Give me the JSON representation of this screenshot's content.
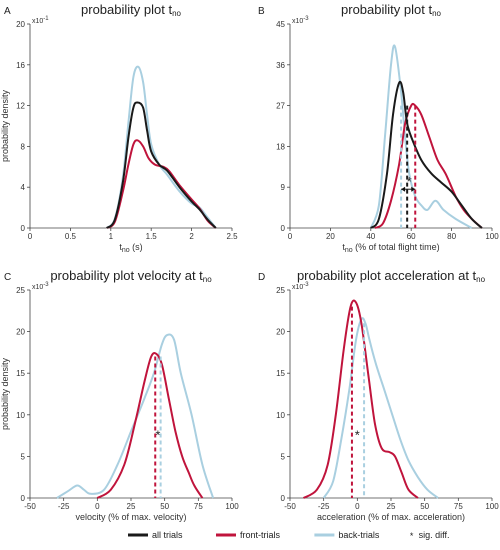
{
  "colors": {
    "all": "#1a1a1a",
    "front": "#c0143c",
    "back": "#a9cfe0"
  },
  "legend": [
    {
      "key": "all",
      "label": "all trials"
    },
    {
      "key": "front",
      "label": "front-trials"
    },
    {
      "key": "back",
      "label": "back-trials"
    },
    {
      "key": "sig",
      "label": "sig. diff.",
      "symbol": "*"
    }
  ],
  "chart_data": [
    {
      "panel": "A",
      "type": "line",
      "title": "probability plot t",
      "title_sub": "no",
      "xlabel": "t",
      "xlabel_sub": "no",
      "xlabel_suffix": " (s)",
      "ylabel": "probability density",
      "y_exponent": "x10",
      "y_exponent_power": "-1",
      "xlim": [
        0,
        2.5
      ],
      "ylim": [
        0,
        20
      ],
      "xticks": [
        0,
        0.5,
        1,
        1.5,
        2,
        2.5
      ],
      "yticks": [
        0,
        4,
        8,
        12,
        16,
        20
      ],
      "series": [
        {
          "key": "all",
          "x": [
            0.95,
            1.05,
            1.15,
            1.22,
            1.28,
            1.33,
            1.4,
            1.45,
            1.5,
            1.6,
            1.7,
            1.85,
            2.0,
            2.1,
            2.2,
            2.3
          ],
          "y": [
            0,
            0.8,
            4.5,
            9.0,
            11.8,
            12.3,
            11.8,
            9.5,
            7.5,
            6.2,
            5.6,
            4.0,
            2.6,
            1.8,
            0.8,
            0
          ]
        },
        {
          "key": "front",
          "x": [
            0.95,
            1.05,
            1.15,
            1.22,
            1.28,
            1.33,
            1.4,
            1.47,
            1.55,
            1.65,
            1.72,
            1.85,
            2.0,
            2.1,
            2.2,
            2.3
          ],
          "y": [
            0,
            0.6,
            3.6,
            6.3,
            8.2,
            8.6,
            8.0,
            6.8,
            6.2,
            6.0,
            5.6,
            4.2,
            2.8,
            1.9,
            0.7,
            0
          ]
        },
        {
          "key": "back",
          "x": [
            0.95,
            1.05,
            1.15,
            1.22,
            1.28,
            1.34,
            1.4,
            1.45,
            1.5,
            1.6,
            1.7,
            1.85,
            2.0,
            2.1,
            2.2,
            2.3
          ],
          "y": [
            0,
            0.9,
            5.0,
            10.5,
            14.8,
            15.8,
            14.3,
            11.0,
            8.2,
            6.2,
            5.2,
            3.6,
            2.4,
            2.0,
            1.0,
            0
          ]
        }
      ],
      "dashed": [],
      "sig": []
    },
    {
      "panel": "B",
      "type": "line",
      "title": "probability plot t",
      "title_sub": "no",
      "xlabel": "t",
      "xlabel_sub": "no",
      "xlabel_suffix": " (% of total flight time)",
      "ylabel": "",
      "y_exponent": "x10",
      "y_exponent_power": "-3",
      "xlim": [
        0,
        100
      ],
      "ylim": [
        0,
        45
      ],
      "xticks": [
        0,
        20,
        40,
        60,
        80,
        100
      ],
      "yticks": [
        0,
        9,
        18,
        27,
        36,
        45
      ],
      "series": [
        {
          "key": "all",
          "x": [
            40,
            44,
            48,
            51,
            54,
            56,
            58,
            61,
            65,
            70,
            75,
            80,
            85,
            90,
            95
          ],
          "y": [
            0,
            2,
            12,
            25,
            32,
            30,
            23,
            19,
            15,
            12,
            10,
            8,
            5,
            2,
            0
          ]
        },
        {
          "key": "front",
          "x": [
            42,
            46,
            50,
            54,
            57,
            60,
            62,
            65,
            69,
            73,
            77,
            82,
            86,
            90,
            95
          ],
          "y": [
            0,
            1,
            6,
            14,
            23,
            27,
            27,
            25,
            20,
            15,
            12,
            7,
            4,
            2,
            0
          ]
        },
        {
          "key": "back",
          "x": [
            40,
            44,
            47,
            50,
            52,
            55,
            57,
            59,
            62,
            65,
            68,
            72,
            76,
            82,
            90
          ],
          "y": [
            0,
            5,
            20,
            36,
            40,
            30,
            20,
            12,
            7,
            5,
            4,
            6,
            4,
            2,
            0
          ]
        }
      ],
      "dashed": [
        {
          "key": "back",
          "x": 55,
          "y": 27
        },
        {
          "key": "all",
          "x": 58,
          "y": 27
        },
        {
          "key": "front",
          "x": 62,
          "y": 27
        }
      ],
      "sig": [
        {
          "x": 59,
          "y": 9,
          "arrow_from": 55,
          "arrow_to": 62
        }
      ]
    },
    {
      "panel": "C",
      "type": "line",
      "title": "probability plot velocity at t",
      "title_sub": "no",
      "xlabel": "velocity (% of max. velocity)",
      "xlabel_sub": "",
      "xlabel_suffix": "",
      "ylabel": "probability density",
      "y_exponent": "x10",
      "y_exponent_power": "-3",
      "xlim": [
        -50,
        100
      ],
      "ylim": [
        0,
        25
      ],
      "xticks": [
        -50,
        -25,
        0,
        25,
        50,
        75,
        100
      ],
      "yticks": [
        0,
        5,
        10,
        15,
        20,
        25
      ],
      "series": [
        {
          "key": "front",
          "x": [
            0,
            10,
            20,
            28,
            35,
            40,
            44,
            48,
            53,
            58,
            63,
            68,
            72,
            78
          ],
          "y": [
            0,
            1,
            4,
            9,
            14,
            17,
            17.3,
            16,
            12,
            8,
            5,
            3,
            1.5,
            0
          ]
        },
        {
          "key": "back",
          "x": [
            -30,
            -22,
            -15,
            -10,
            -5,
            5,
            15,
            25,
            35,
            42,
            48,
            52,
            57,
            62,
            70,
            78,
            86
          ],
          "y": [
            0,
            0.8,
            1.5,
            1,
            0.5,
            1,
            4,
            8,
            12,
            15,
            18.5,
            19.6,
            19,
            15,
            10,
            4,
            0
          ]
        }
      ],
      "dashed": [
        {
          "key": "front",
          "x": 43,
          "y": 17
        },
        {
          "key": "back",
          "x": 47,
          "y": 17
        }
      ],
      "sig": [
        {
          "x": 45,
          "y": 7.5
        }
      ]
    },
    {
      "panel": "D",
      "type": "line",
      "title": "probability plot acceleration at t",
      "title_sub": "no",
      "xlabel": "acceleration (% of max. acceleration)",
      "xlabel_sub": "",
      "xlabel_suffix": "",
      "ylabel": "",
      "y_exponent": "x10",
      "y_exponent_power": "-3",
      "xlim": [
        -50,
        100
      ],
      "ylim": [
        0,
        25
      ],
      "xticks": [
        -50,
        -25,
        0,
        25,
        50,
        75,
        100
      ],
      "yticks": [
        0,
        5,
        10,
        15,
        20,
        25
      ],
      "series": [
        {
          "key": "front",
          "x": [
            -40,
            -30,
            -22,
            -16,
            -10,
            -5,
            -1,
            3,
            8,
            13,
            18,
            24,
            28,
            33,
            38,
            45
          ],
          "y": [
            0,
            1,
            4,
            10,
            18,
            23,
            23.5,
            21,
            15,
            9,
            6,
            5.5,
            5,
            3,
            1,
            0
          ]
        },
        {
          "key": "back",
          "x": [
            -25,
            -18,
            -12,
            -6,
            -1,
            3,
            6,
            9,
            14,
            20,
            26,
            32,
            38,
            45,
            52,
            60
          ],
          "y": [
            0,
            2,
            7,
            13,
            19,
            21.5,
            21,
            19,
            16,
            13,
            10,
            7,
            4.5,
            2.5,
            1,
            0
          ]
        }
      ],
      "dashed": [
        {
          "key": "front",
          "x": -4,
          "y": 23
        },
        {
          "key": "back",
          "x": 5,
          "y": 21
        }
      ],
      "sig": [
        {
          "x": 0,
          "y": 7.5
        }
      ]
    }
  ]
}
